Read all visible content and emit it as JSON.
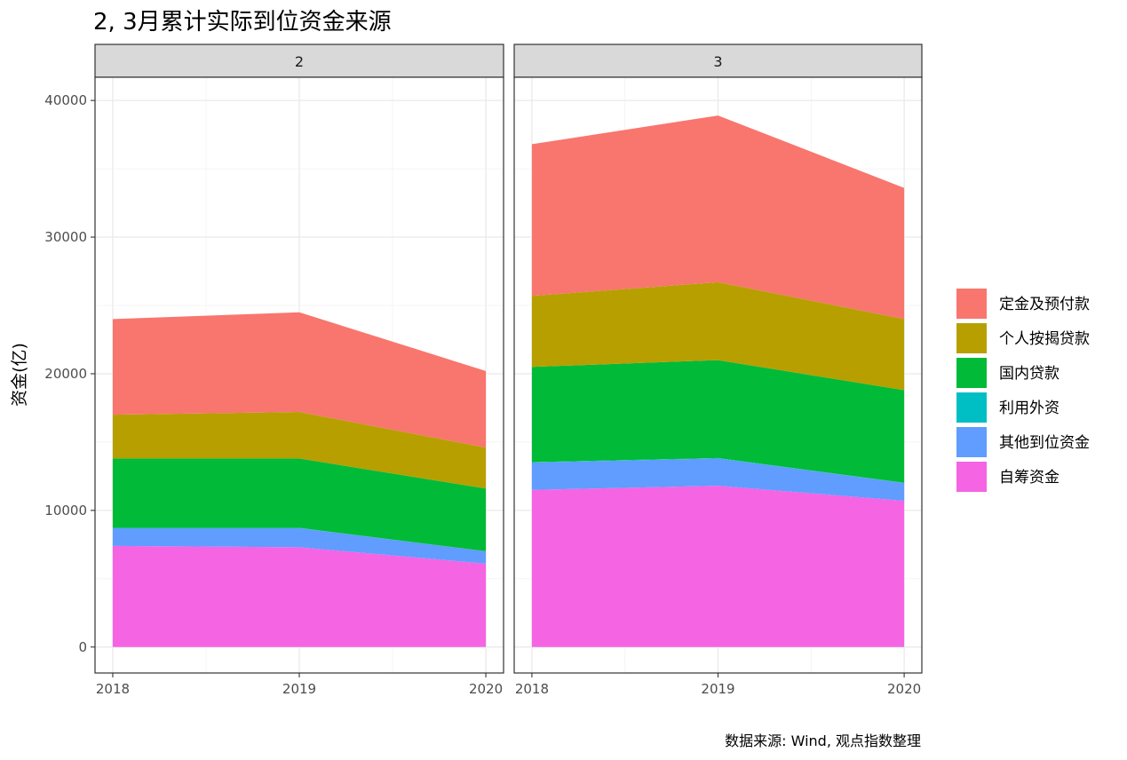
{
  "chart_data": {
    "type": "area",
    "stacked": true,
    "title": "2, 3月累计实际到位资金来源",
    "ylabel": "资金(亿)",
    "xlabel": "",
    "caption": "数据来源: Wind, 观点指数整理",
    "x": [
      2018,
      2019,
      2020
    ],
    "ylim": [
      -1900,
      41700
    ],
    "y_ticks": [
      0,
      10000,
      20000,
      30000,
      40000
    ],
    "y_tick_labels": [
      "0",
      "10000",
      "20000",
      "30000",
      "40000"
    ],
    "x_tick_labels": [
      "2018",
      "2019",
      "2020"
    ],
    "grid": true,
    "legend_position": "right",
    "series_order_bottom_to_top": [
      "自筹资金",
      "其他到位资金",
      "利用外资",
      "国内贷款",
      "个人按揭贷款",
      "定金及预付款"
    ],
    "legend": [
      {
        "name": "定金及预付款",
        "color": "#F8766D"
      },
      {
        "name": "个人按揭贷款",
        "color": "#B79F00"
      },
      {
        "name": "国内贷款",
        "color": "#00BA38"
      },
      {
        "name": "利用外资",
        "color": "#00BFC4"
      },
      {
        "name": "其他到位资金",
        "color": "#619CFF"
      },
      {
        "name": "自筹资金",
        "color": "#F564E3"
      }
    ],
    "panels": [
      {
        "label": "2",
        "series": [
          {
            "name": "自筹资金",
            "values": [
              7400,
              7300,
              6100
            ]
          },
          {
            "name": "其他到位资金",
            "values": [
              1300,
              1400,
              900
            ]
          },
          {
            "name": "利用外资",
            "values": [
              20,
              20,
              10
            ]
          },
          {
            "name": "国内贷款",
            "values": [
              5080,
              5080,
              4590
            ]
          },
          {
            "name": "个人按揭贷款",
            "values": [
              3200,
              3400,
              3000
            ]
          },
          {
            "name": "定金及预付款",
            "values": [
              7000,
              7300,
              5600
            ]
          }
        ]
      },
      {
        "label": "3",
        "series": [
          {
            "name": "自筹资金",
            "values": [
              11500,
              11800,
              10700
            ]
          },
          {
            "name": "其他到位资金",
            "values": [
              2000,
              2000,
              1300
            ]
          },
          {
            "name": "利用外资",
            "values": [
              30,
              30,
              20
            ]
          },
          {
            "name": "国内贷款",
            "values": [
              6970,
              7170,
              6780
            ]
          },
          {
            "name": "个人按揭贷款",
            "values": [
              5200,
              5700,
              5200
            ]
          },
          {
            "name": "定金及预付款",
            "values": [
              11100,
              12200,
              9600
            ]
          }
        ]
      }
    ]
  }
}
